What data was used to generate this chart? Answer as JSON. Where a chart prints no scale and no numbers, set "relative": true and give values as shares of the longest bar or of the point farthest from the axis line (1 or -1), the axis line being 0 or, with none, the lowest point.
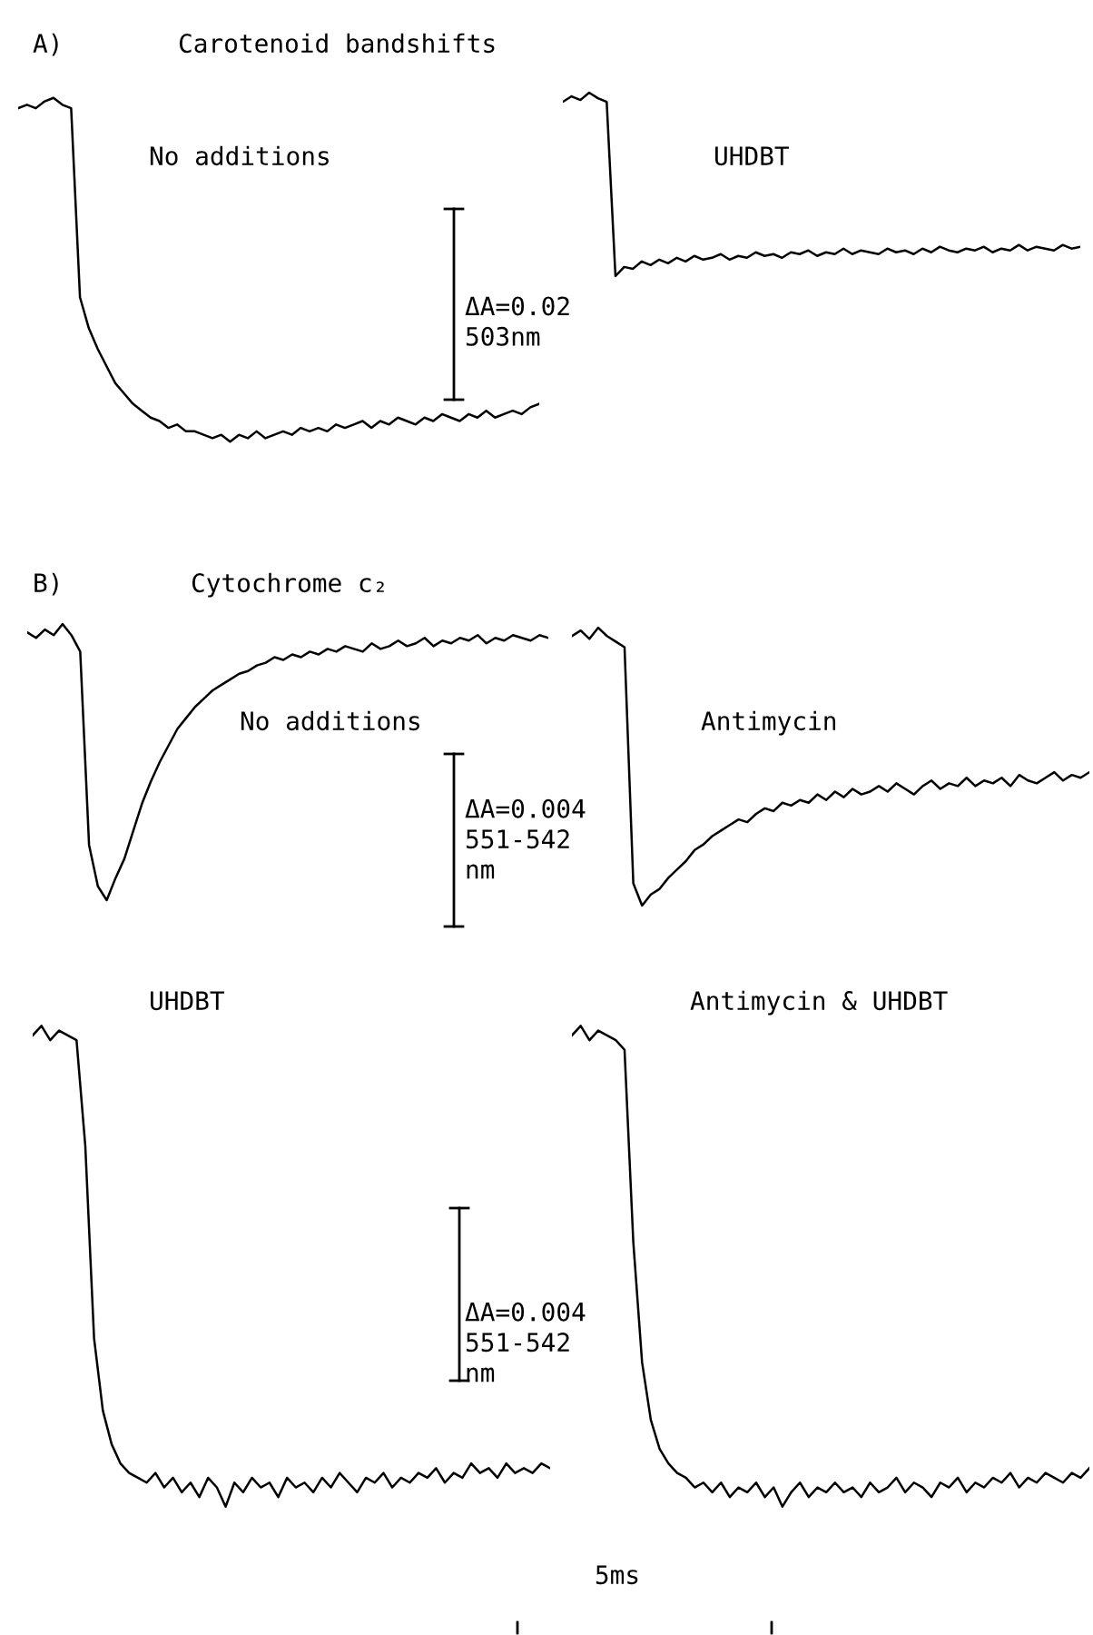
{
  "chart_data": [
    {
      "type": "line",
      "relative": true,
      "title": "No additions",
      "annotations": [
        "A)",
        "Carotenoid bandshifts",
        "ΔA=0.02\n503nm"
      ],
      "categories": [
        null,
        null,
        null,
        null,
        null,
        null,
        null,
        null,
        null,
        null,
        null,
        null,
        null,
        null,
        null,
        null,
        null,
        null,
        null,
        null,
        null,
        null,
        null,
        null,
        null,
        null,
        null,
        null,
        null,
        null,
        null,
        null,
        null,
        null,
        null,
        null,
        null,
        null,
        null,
        null,
        null,
        null,
        null,
        null,
        null,
        null,
        null,
        null,
        null,
        null,
        null,
        null,
        null,
        null,
        null,
        null,
        null,
        null,
        null,
        null
      ],
      "color": "#000000",
      "values": [
        0.97,
        0.98,
        0.97,
        0.99,
        1.0,
        0.98,
        0.97,
        0.42,
        0.33,
        0.27,
        0.22,
        0.17,
        0.14,
        0.11,
        0.09,
        0.07,
        0.06,
        0.04,
        0.05,
        0.03,
        0.03,
        0.02,
        0.01,
        0.02,
        0.0,
        0.02,
        0.01,
        0.03,
        0.01,
        0.02,
        0.03,
        0.02,
        0.04,
        0.03,
        0.04,
        0.03,
        0.05,
        0.04,
        0.05,
        0.06,
        0.04,
        0.06,
        0.05,
        0.07,
        0.06,
        0.05,
        0.07,
        0.06,
        0.08,
        0.07,
        0.06,
        0.08,
        0.07,
        0.09,
        0.07,
        0.08,
        0.09,
        0.08,
        0.1,
        0.11
      ]
    },
    {
      "type": "line",
      "relative": true,
      "title": "UHDBT",
      "categories": [
        null,
        null,
        null,
        null,
        null,
        null,
        null,
        null,
        null,
        null,
        null,
        null,
        null,
        null,
        null,
        null,
        null,
        null,
        null,
        null,
        null,
        null,
        null,
        null,
        null,
        null,
        null,
        null,
        null,
        null,
        null,
        null,
        null,
        null,
        null,
        null,
        null,
        null,
        null,
        null,
        null,
        null,
        null,
        null,
        null,
        null,
        null,
        null,
        null,
        null,
        null,
        null,
        null,
        null,
        null,
        null,
        null,
        null,
        null,
        null
      ],
      "color": "#000000",
      "values": [
        0.95,
        0.98,
        0.96,
        1.0,
        0.97,
        0.95,
        0.0,
        0.05,
        0.04,
        0.08,
        0.06,
        0.09,
        0.07,
        0.1,
        0.08,
        0.11,
        0.09,
        0.1,
        0.12,
        0.09,
        0.11,
        0.1,
        0.13,
        0.11,
        0.12,
        0.1,
        0.13,
        0.12,
        0.14,
        0.11,
        0.13,
        0.12,
        0.15,
        0.12,
        0.14,
        0.13,
        0.12,
        0.15,
        0.13,
        0.14,
        0.12,
        0.15,
        0.13,
        0.16,
        0.14,
        0.13,
        0.15,
        0.14,
        0.16,
        0.13,
        0.15,
        0.14,
        0.17,
        0.14,
        0.16,
        0.15,
        0.14,
        0.17,
        0.15,
        0.16
      ]
    },
    {
      "type": "line",
      "relative": true,
      "title": "No additions",
      "annotations": [
        "B)",
        "Cytochrome c₂",
        "ΔA=0.004\n551-542\nnm"
      ],
      "categories": [
        null,
        null,
        null,
        null,
        null,
        null,
        null,
        null,
        null,
        null,
        null,
        null,
        null,
        null,
        null,
        null,
        null,
        null,
        null,
        null,
        null,
        null,
        null,
        null,
        null,
        null,
        null,
        null,
        null,
        null,
        null,
        null,
        null,
        null,
        null,
        null,
        null,
        null,
        null,
        null,
        null,
        null,
        null,
        null,
        null,
        null,
        null,
        null,
        null,
        null,
        null,
        null,
        null,
        null,
        null,
        null,
        null,
        null,
        null,
        null
      ],
      "color": "#000000",
      "values": [
        0.97,
        0.95,
        0.98,
        0.96,
        1.0,
        0.96,
        0.9,
        0.2,
        0.05,
        0.0,
        0.08,
        0.15,
        0.25,
        0.35,
        0.43,
        0.5,
        0.56,
        0.62,
        0.66,
        0.7,
        0.73,
        0.76,
        0.78,
        0.8,
        0.82,
        0.83,
        0.85,
        0.86,
        0.88,
        0.87,
        0.89,
        0.88,
        0.9,
        0.89,
        0.91,
        0.9,
        0.92,
        0.91,
        0.9,
        0.93,
        0.91,
        0.92,
        0.94,
        0.92,
        0.93,
        0.95,
        0.92,
        0.94,
        0.93,
        0.95,
        0.94,
        0.96,
        0.93,
        0.95,
        0.94,
        0.96,
        0.95,
        0.94,
        0.96,
        0.95
      ]
    },
    {
      "type": "line",
      "relative": true,
      "title": "Antimycin",
      "categories": [
        null,
        null,
        null,
        null,
        null,
        null,
        null,
        null,
        null,
        null,
        null,
        null,
        null,
        null,
        null,
        null,
        null,
        null,
        null,
        null,
        null,
        null,
        null,
        null,
        null,
        null,
        null,
        null,
        null,
        null,
        null,
        null,
        null,
        null,
        null,
        null,
        null,
        null,
        null,
        null,
        null,
        null,
        null,
        null,
        null,
        null,
        null,
        null,
        null,
        null,
        null,
        null,
        null,
        null,
        null,
        null,
        null,
        null,
        null,
        null
      ],
      "color": "#000000",
      "values": [
        0.97,
        0.99,
        0.96,
        1.0,
        0.97,
        0.95,
        0.93,
        0.08,
        0.0,
        0.04,
        0.06,
        0.1,
        0.13,
        0.16,
        0.2,
        0.22,
        0.25,
        0.27,
        0.29,
        0.31,
        0.3,
        0.33,
        0.35,
        0.34,
        0.37,
        0.36,
        0.38,
        0.37,
        0.4,
        0.38,
        0.41,
        0.39,
        0.42,
        0.4,
        0.41,
        0.43,
        0.41,
        0.44,
        0.42,
        0.4,
        0.43,
        0.45,
        0.42,
        0.44,
        0.43,
        0.46,
        0.43,
        0.45,
        0.44,
        0.46,
        0.43,
        0.47,
        0.45,
        0.44,
        0.46,
        0.48,
        0.45,
        0.47,
        0.46,
        0.48
      ]
    },
    {
      "type": "line",
      "relative": true,
      "title": "UHDBT",
      "annotations": [
        "ΔA=0.004\n551-542\nnm",
        "5ms"
      ],
      "categories": [
        null,
        null,
        null,
        null,
        null,
        null,
        null,
        null,
        null,
        null,
        null,
        null,
        null,
        null,
        null,
        null,
        null,
        null,
        null,
        null,
        null,
        null,
        null,
        null,
        null,
        null,
        null,
        null,
        null,
        null,
        null,
        null,
        null,
        null,
        null,
        null,
        null,
        null,
        null,
        null,
        null,
        null,
        null,
        null,
        null,
        null,
        null,
        null,
        null,
        null,
        null,
        null,
        null,
        null,
        null,
        null,
        null,
        null,
        null,
        null
      ],
      "color": "#000000",
      "values": [
        0.98,
        1.0,
        0.97,
        0.99,
        0.98,
        0.97,
        0.75,
        0.35,
        0.2,
        0.13,
        0.09,
        0.07,
        0.06,
        0.05,
        0.07,
        0.04,
        0.06,
        0.03,
        0.05,
        0.02,
        0.06,
        0.04,
        0.0,
        0.05,
        0.03,
        0.06,
        0.04,
        0.05,
        0.02,
        0.06,
        0.04,
        0.05,
        0.03,
        0.06,
        0.04,
        0.07,
        0.05,
        0.03,
        0.06,
        0.05,
        0.07,
        0.04,
        0.06,
        0.05,
        0.07,
        0.06,
        0.08,
        0.05,
        0.07,
        0.06,
        0.09,
        0.07,
        0.08,
        0.06,
        0.09,
        0.07,
        0.08,
        0.07,
        0.09,
        0.08
      ]
    },
    {
      "type": "line",
      "relative": true,
      "title": "Antimycin & UHDBT",
      "categories": [
        null,
        null,
        null,
        null,
        null,
        null,
        null,
        null,
        null,
        null,
        null,
        null,
        null,
        null,
        null,
        null,
        null,
        null,
        null,
        null,
        null,
        null,
        null,
        null,
        null,
        null,
        null,
        null,
        null,
        null,
        null,
        null,
        null,
        null,
        null,
        null,
        null,
        null,
        null,
        null,
        null,
        null,
        null,
        null,
        null,
        null,
        null,
        null,
        null,
        null,
        null,
        null,
        null,
        null,
        null,
        null,
        null,
        null,
        null,
        null
      ],
      "color": "#000000",
      "values": [
        0.98,
        1.0,
        0.97,
        0.99,
        0.98,
        0.97,
        0.95,
        0.55,
        0.3,
        0.18,
        0.12,
        0.09,
        0.07,
        0.06,
        0.04,
        0.05,
        0.03,
        0.05,
        0.02,
        0.04,
        0.03,
        0.05,
        0.02,
        0.04,
        0.0,
        0.03,
        0.05,
        0.02,
        0.04,
        0.03,
        0.05,
        0.03,
        0.04,
        0.02,
        0.05,
        0.03,
        0.04,
        0.06,
        0.03,
        0.05,
        0.04,
        0.02,
        0.05,
        0.04,
        0.06,
        0.03,
        0.05,
        0.04,
        0.06,
        0.05,
        0.07,
        0.04,
        0.06,
        0.05,
        0.07,
        0.06,
        0.05,
        0.07,
        0.06,
        0.08
      ]
    }
  ]
}
